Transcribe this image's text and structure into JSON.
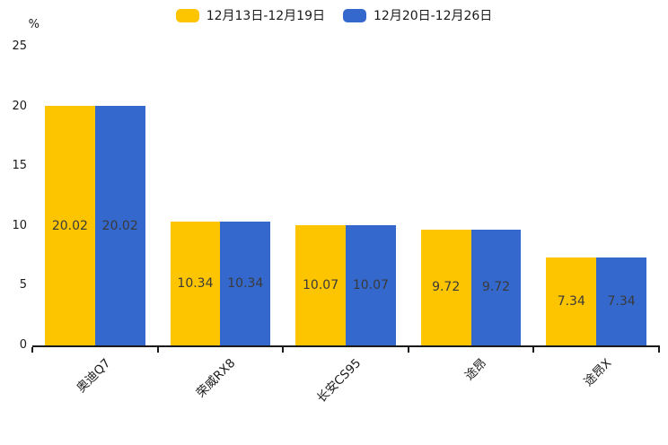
{
  "chart_data": {
    "type": "bar",
    "title": "",
    "categories": [
      "奥迪Q7",
      "荣威RX8",
      "长安CS95",
      "途昂",
      "途昂X"
    ],
    "series": [
      {
        "name": "12月13日-12月19日",
        "color": "#FDC500",
        "values": [
          20.02,
          10.34,
          10.07,
          9.72,
          7.34
        ]
      },
      {
        "name": "12月20日-12月26日",
        "color": "#3468CC",
        "values": [
          20.02,
          10.34,
          10.07,
          9.72,
          7.34
        ]
      }
    ],
    "value_labels": [
      "20.02",
      "10.34",
      "10.07",
      "9.72",
      "7.34"
    ],
    "ylabel": "%",
    "ylim": [
      0,
      25
    ],
    "yticks": [
      0,
      5,
      10,
      15,
      20,
      25
    ],
    "grid": false,
    "legend_position": "top-center",
    "value_label_position": "inside-center"
  },
  "colors": {
    "background": "#ffffff",
    "axis": "#1a1a1a",
    "value_label_text": "#3a3a3a",
    "tick_text": "#1a1a1a"
  }
}
